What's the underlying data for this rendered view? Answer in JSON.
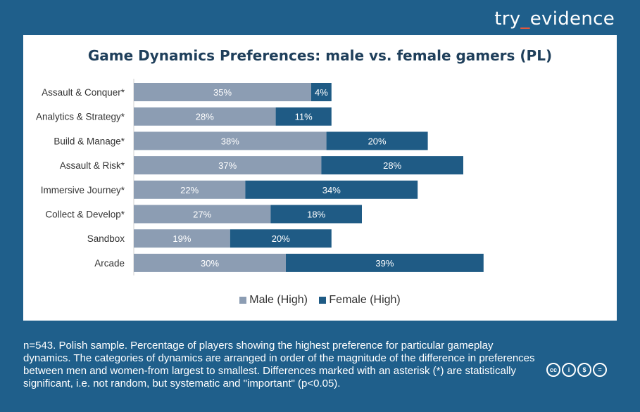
{
  "brand": {
    "prefix": "try",
    "underscore": "_",
    "suffix": "evidence"
  },
  "colors": {
    "male": "#8c9db3",
    "female": "#1f5b85",
    "background": "#1f5f8b"
  },
  "chart_data": {
    "type": "bar",
    "orientation": "horizontal",
    "stacked": true,
    "title": "Game Dynamics Preferences: male vs. female gamers (PL)",
    "categories": [
      "Assault & Conquer*",
      "Analytics & Strategy*",
      "Build & Manage*",
      "Assault & Risk*",
      "Immersive Journey*",
      "Collect & Develop*",
      "Sandbox",
      "Arcade"
    ],
    "series": [
      {
        "name": "Male (High)",
        "values": [
          35,
          28,
          38,
          37,
          22,
          27,
          19,
          30
        ],
        "labels": [
          "35%",
          "28%",
          "38%",
          "37%",
          "22%",
          "27%",
          "19%",
          "30%"
        ]
      },
      {
        "name": "Female (High)",
        "values": [
          4,
          11,
          20,
          28,
          34,
          18,
          20,
          39
        ],
        "labels": [
          "4%",
          "11%",
          "20%",
          "28%",
          "34%",
          "18%",
          "20%",
          "39%"
        ]
      }
    ],
    "legend_position": "bottom",
    "grid": false
  },
  "footer": {
    "note": "n=543. Polish sample. Percentage of players showing the highest preference for particular gameplay dynamics. The categories of dynamics are arranged in order of the magnitude of the difference in preferences between men and women-from largest to smallest. Differences marked with an asterisk (*) are statistically significant, i.e. not random, but systematic and \"important\" (p<0.05)."
  },
  "license": {
    "icons": [
      "cc-icon",
      "by-icon",
      "nc-icon",
      "nd-icon"
    ],
    "glyphs": [
      "cc",
      "i",
      "$",
      "="
    ]
  }
}
